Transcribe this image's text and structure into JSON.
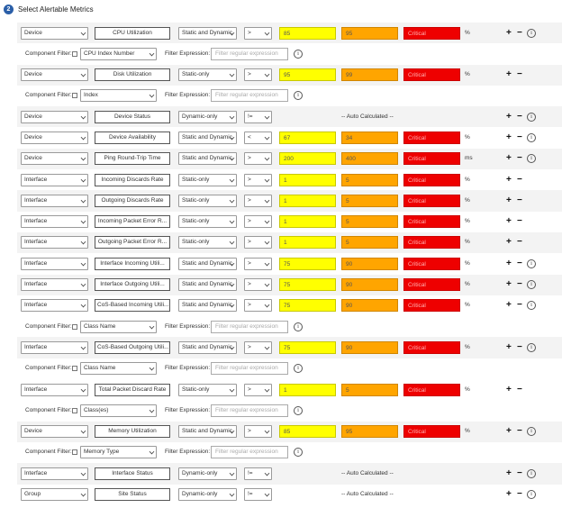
{
  "section": {
    "step_number": "2",
    "title": "Select Alertable Metrics"
  },
  "labels": {
    "component_filter": "Component Filter:",
    "filter_expression": "Filter Expression:",
    "filter_placeholder": "Filter regular expression",
    "auto_calculated": "-- Auto Calculated --",
    "plus": "+",
    "minus": "−",
    "info": "i"
  },
  "colors": {
    "warning": "#ffff00",
    "major": "#ffa500",
    "critical": "#ee0000"
  },
  "rows": [
    {
      "kind": "metric",
      "scope": "Device",
      "metric": "CPU Utilization",
      "mode": "Static and Dynamic",
      "operator": ">",
      "warning": "85",
      "major": "95",
      "critical": "Critical",
      "unit": "%",
      "info": true,
      "shaded": true
    },
    {
      "kind": "filter",
      "component": "CPU Index Number"
    },
    {
      "kind": "metric",
      "scope": "Device",
      "metric": "Disk Utilization",
      "mode": "Static-only",
      "operator": ">",
      "warning": "95",
      "major": "99",
      "critical": "Critical",
      "unit": "%",
      "info": false,
      "shaded": true
    },
    {
      "kind": "filter",
      "component": "Index"
    },
    {
      "kind": "metric",
      "scope": "Device",
      "metric": "Device Status",
      "mode": "Dynamic-only",
      "operator": "!=",
      "auto": true,
      "info": true,
      "shaded": true
    },
    {
      "kind": "metric",
      "scope": "Device",
      "metric": "Device Availability",
      "mode": "Static and Dynamic",
      "operator": "<",
      "warning": "67",
      "major": "34",
      "critical": "Critical",
      "unit": "%",
      "info": true,
      "shaded": false
    },
    {
      "kind": "metric",
      "scope": "Device",
      "metric": "Ping Round-Trip Time",
      "mode": "Static and Dynamic",
      "operator": ">",
      "warning": "200",
      "major": "400",
      "critical": "Critical",
      "unit": "ms",
      "info": true,
      "shaded": true
    },
    {
      "kind": "metric",
      "scope": "Interface",
      "metric": "Incoming Discards Rate",
      "mode": "Static-only",
      "operator": ">",
      "warning": "1",
      "major": "5",
      "critical": "Critical",
      "unit": "%",
      "info": false,
      "shaded": false
    },
    {
      "kind": "metric",
      "scope": "Interface",
      "metric": "Outgoing Discards Rate",
      "mode": "Static-only",
      "operator": ">",
      "warning": "1",
      "major": "5",
      "critical": "Critical",
      "unit": "%",
      "info": false,
      "shaded": true
    },
    {
      "kind": "metric",
      "scope": "Interface",
      "metric": "Incoming Packet Error R...",
      "mode": "Static-only",
      "operator": ">",
      "warning": "1",
      "major": "5",
      "critical": "Critical",
      "unit": "%",
      "info": false,
      "shaded": false
    },
    {
      "kind": "metric",
      "scope": "Interface",
      "metric": "Outgoing Packet Error R...",
      "mode": "Static-only",
      "operator": ">",
      "warning": "1",
      "major": "5",
      "critical": "Critical",
      "unit": "%",
      "info": false,
      "shaded": true
    },
    {
      "kind": "metric",
      "scope": "Interface",
      "metric": "Interface Incoming Utili...",
      "mode": "Static and Dynamic",
      "operator": ">",
      "warning": "75",
      "major": "90",
      "critical": "Critical",
      "unit": "%",
      "info": true,
      "shaded": false
    },
    {
      "kind": "metric",
      "scope": "Interface",
      "metric": "Interface Outgoing Utili...",
      "mode": "Static and Dynamic",
      "operator": ">",
      "warning": "75",
      "major": "90",
      "critical": "Critical",
      "unit": "%",
      "info": true,
      "shaded": true
    },
    {
      "kind": "metric",
      "scope": "Interface",
      "metric": "CoS-Based Incoming Utili...",
      "mode": "Static and Dynamic",
      "operator": ">",
      "warning": "75",
      "major": "90",
      "critical": "Critical",
      "unit": "%",
      "info": true,
      "shaded": false
    },
    {
      "kind": "filter",
      "component": "Class Name"
    },
    {
      "kind": "metric",
      "scope": "Interface",
      "metric": "CoS-Based Outgoing Utili...",
      "mode": "Static and Dynamic",
      "operator": ">",
      "warning": "75",
      "major": "90",
      "critical": "Critical",
      "unit": "%",
      "info": true,
      "shaded": true
    },
    {
      "kind": "filter",
      "component": "Class Name"
    },
    {
      "kind": "metric",
      "scope": "Interface",
      "metric": "Total Packet Discard Rate",
      "mode": "Static-only",
      "operator": ">",
      "warning": "1",
      "major": "5",
      "critical": "Critical",
      "unit": "%",
      "info": false,
      "shaded": false
    },
    {
      "kind": "filter",
      "component": "Class(es)"
    },
    {
      "kind": "metric",
      "scope": "Device",
      "metric": "Memory Utilization",
      "mode": "Static and Dynamic",
      "operator": ">",
      "warning": "85",
      "major": "95",
      "critical": "Critical",
      "unit": "%",
      "info": true,
      "shaded": true
    },
    {
      "kind": "filter",
      "component": "Memory Type"
    },
    {
      "kind": "metric",
      "scope": "Interface",
      "metric": "Interface Status",
      "mode": "Dynamic-only",
      "operator": "!=",
      "auto": true,
      "info": true,
      "shaded": true
    },
    {
      "kind": "metric",
      "scope": "Group",
      "metric": "Site Status",
      "mode": "Dynamic-only",
      "operator": "!=",
      "auto": true,
      "info": true,
      "shaded": false
    }
  ]
}
